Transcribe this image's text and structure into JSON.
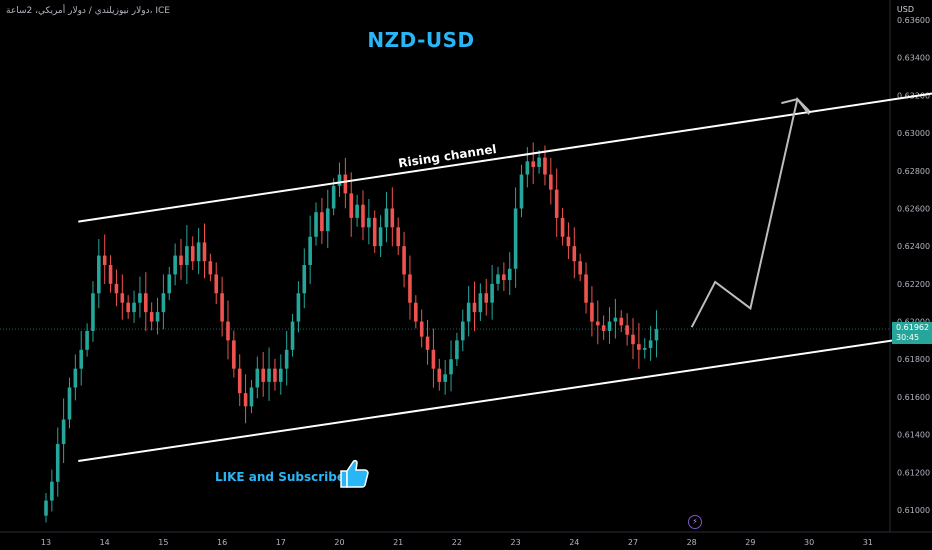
{
  "symbol_line": "دولار نيوزيلندي / دولار أمريكي، 2ساعة، ICE",
  "title": "NZD-USD",
  "cta_text": "LIKE and Subscribe",
  "currency": "USD",
  "price_tag": {
    "price": "0.61962",
    "countdown": "30:45"
  },
  "icons": {
    "thumbs": "thumbs-up-icon",
    "bolt": "lightning-icon"
  },
  "colors": {
    "up": "#26a69a",
    "down": "#ef5350",
    "title": "#29b6f6",
    "channel": "#ffffff",
    "arrow": "#bdbdbd"
  },
  "chart_data": {
    "type": "candlestick",
    "annotation": "Rising channel",
    "ylim": [
      0.61,
      0.636
    ],
    "y_ticks": [
      "0.63600",
      "0.63400",
      "0.63200",
      "0.63000",
      "0.62800",
      "0.62600",
      "0.62400",
      "0.62200",
      "0.62000",
      "0.61800",
      "0.61600",
      "0.61400",
      "0.61200",
      "0.61000"
    ],
    "x_ticks": [
      "13",
      "14",
      "15",
      "16",
      "17",
      "20",
      "21",
      "22",
      "23",
      "24",
      "27",
      "28",
      "29",
      "30",
      "31"
    ],
    "x_tick_index": [
      0,
      10,
      20,
      30,
      40,
      50,
      60,
      70,
      80,
      90,
      100,
      110,
      120,
      130,
      140
    ],
    "candles_close": [
      0.6105,
      0.6115,
      0.6135,
      0.6148,
      0.6165,
      0.6175,
      0.6185,
      0.6195,
      0.6215,
      0.6235,
      0.623,
      0.622,
      0.6215,
      0.621,
      0.6205,
      0.621,
      0.6215,
      0.6205,
      0.62,
      0.6205,
      0.6215,
      0.6225,
      0.6235,
      0.623,
      0.624,
      0.6232,
      0.6242,
      0.6232,
      0.6225,
      0.6215,
      0.62,
      0.619,
      0.6175,
      0.6162,
      0.6155,
      0.6165,
      0.6175,
      0.6168,
      0.6175,
      0.6168,
      0.6175,
      0.6185,
      0.62,
      0.6215,
      0.623,
      0.6245,
      0.6258,
      0.6248,
      0.626,
      0.6272,
      0.6278,
      0.6268,
      0.6255,
      0.6262,
      0.625,
      0.6255,
      0.624,
      0.625,
      0.626,
      0.625,
      0.624,
      0.6225,
      0.621,
      0.62,
      0.6192,
      0.6185,
      0.6175,
      0.6168,
      0.6172,
      0.618,
      0.619,
      0.62,
      0.621,
      0.6205,
      0.6215,
      0.621,
      0.622,
      0.6225,
      0.6222,
      0.6228,
      0.626,
      0.6278,
      0.6285,
      0.6282,
      0.6287,
      0.6278,
      0.627,
      0.6255,
      0.6245,
      0.624,
      0.6232,
      0.6225,
      0.621,
      0.62,
      0.6198,
      0.6195,
      0.62,
      0.6202,
      0.6198,
      0.6193,
      0.6188,
      0.6185,
      0.6186,
      0.619,
      0.6196
    ],
    "channel": {
      "upper": [
        [
          5.5,
          0.6253
        ],
        [
          166,
          0.6328
        ]
      ],
      "lower": [
        [
          5.5,
          0.6126
        ],
        [
          166,
          0.62
        ]
      ]
    },
    "projection": [
      [
        110,
        0.6197
      ],
      [
        114,
        0.6221
      ],
      [
        120,
        0.6207
      ],
      [
        128,
        0.6318
      ],
      [
        130,
        0.631
      ]
    ]
  }
}
